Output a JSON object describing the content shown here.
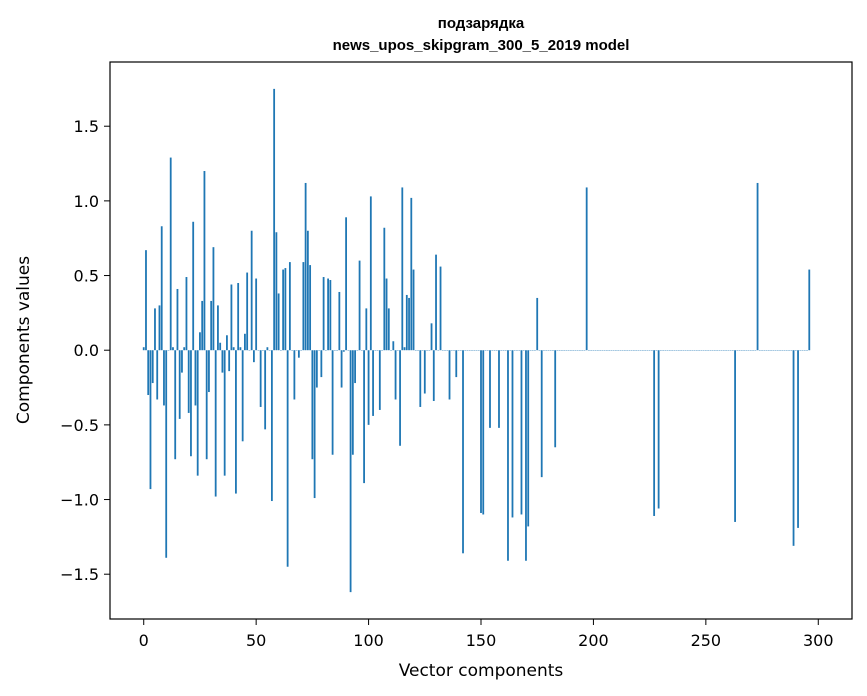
{
  "chart_data": {
    "type": "bar",
    "title": "подзарядка",
    "subtitle": "news_upos_skipgram_300_5_2019 model",
    "xlabel": "Vector components",
    "ylabel": "Components values",
    "xlim": [
      -15,
      315
    ],
    "ylim": [
      -1.8,
      1.93
    ],
    "xticks": [
      0,
      50,
      100,
      150,
      200,
      250,
      300
    ],
    "xtick_labels": [
      "0",
      "50",
      "100",
      "150",
      "200",
      "250",
      "300"
    ],
    "yticks": [
      -1.5,
      -1.0,
      -0.5,
      0.0,
      0.5,
      1.0,
      1.5
    ],
    "ytick_labels": [
      "−1.5",
      "−1.0",
      "−0.5",
      "0.0",
      "0.5",
      "1.0",
      "1.5"
    ],
    "grid": false,
    "bar_color": "#1f77b4",
    "values": [
      0.02,
      0.67,
      -0.3,
      -0.93,
      -0.22,
      0.28,
      -0.33,
      0.3,
      0.83,
      -0.37,
      -1.39,
      0.0,
      1.29,
      0.02,
      -0.73,
      0.41,
      -0.46,
      -0.15,
      0.02,
      0.49,
      -0.42,
      -0.71,
      0.86,
      -0.37,
      -0.84,
      0.12,
      0.33,
      1.2,
      -0.73,
      -0.28,
      0.33,
      0.69,
      -0.98,
      0.3,
      0.05,
      -0.15,
      -0.84,
      0.1,
      -0.14,
      0.44,
      0.02,
      -0.96,
      0.45,
      0.02,
      -0.61,
      0.11,
      0.52,
      0.0,
      0.8,
      -0.08,
      0.48,
      0.0,
      -0.38,
      0.0,
      -0.53,
      0.02,
      -0.0,
      -1.01,
      1.75,
      0.79,
      0.38,
      -0.0,
      0.54,
      0.55,
      -1.45,
      0.59,
      0.0,
      -0.33,
      0.0,
      -0.05,
      0.0,
      0.59,
      1.12,
      0.8,
      0.57,
      -0.73,
      -0.99,
      -0.25,
      0.0,
      -0.18,
      0.49,
      0.0,
      0.48,
      0.47,
      -0.7,
      0.0,
      0.0,
      0.39,
      -0.25,
      -0.01,
      0.89,
      0.0,
      -1.62,
      -0.7,
      -0.22,
      0.0,
      0.6,
      0.0,
      -0.89,
      0.28,
      -0.5,
      1.03,
      -0.44,
      0.0,
      0.0,
      -0.4,
      0.0,
      0.82,
      0.48,
      0.28,
      0.0,
      0.06,
      -0.33,
      0.0,
      -0.64,
      1.09,
      0.02,
      0.37,
      0.35,
      1.02,
      0.54,
      0.0,
      0.0,
      -0.38,
      0.0,
      -0.29,
      0.0,
      0.0,
      0.18,
      -0.34,
      0.64,
      0.0,
      0.56,
      0.0,
      0.0,
      0.0,
      -0.33,
      0.0,
      0.0,
      -0.18,
      0.0,
      0.0,
      -1.36,
      0.0,
      0.0,
      0.0,
      0.0,
      0.0,
      0.0,
      0.0,
      -1.09,
      -1.1,
      0.0,
      0.0,
      -0.52,
      0.0,
      0.0,
      0.0,
      -0.52,
      0.0,
      0.0,
      0.0,
      -1.41,
      0.0,
      -1.12,
      0.0,
      0.0,
      0.0,
      -1.1,
      0.0,
      -1.41,
      -1.18,
      0.0,
      0.0,
      0.0,
      0.35,
      0.0,
      -0.85,
      0.0,
      0.0,
      0.0,
      0.0,
      0.0,
      -0.65,
      0.0,
      0.0,
      0.0,
      0.0,
      0.0,
      0.0,
      0.0,
      0.0,
      0.0,
      0.0,
      0.0,
      0.0,
      0.0,
      1.09,
      0.0,
      0.0,
      0.0,
      0.0,
      0.0,
      0.0,
      0.0,
      0.0,
      0.0,
      0.0,
      0.0,
      0.0,
      0.0,
      0.0,
      0.0,
      0.0,
      0.0,
      0.0,
      0.0,
      0.0,
      0.0,
      0.0,
      0.0,
      0.0,
      0.0,
      0.0,
      0.0,
      0.0,
      0.0,
      -1.11,
      0.0,
      -1.06,
      0.0,
      0.0,
      0.0,
      0.0,
      0.0,
      0.0,
      0.0,
      0.0,
      0.0,
      0.0,
      0.0,
      0.0,
      0.0,
      0.0,
      0.0,
      0.0,
      0.0,
      0.0,
      0.0,
      0.0,
      0.0,
      0.0,
      0.0,
      0.0,
      0.0,
      0.0,
      0.0,
      0.0,
      0.0,
      0.0,
      0.0,
      0.0,
      0.0,
      -1.15,
      0.0,
      0.0,
      0.0,
      0.0,
      0.0,
      0.0,
      0.0,
      0.0,
      0.0,
      1.12,
      0.0,
      0.0,
      0.0,
      0.0,
      0.0,
      0.0,
      0.0,
      0.0,
      0.0,
      0.0,
      0.0,
      0.0,
      0.0,
      0.0,
      0.0,
      -1.31,
      0.0,
      -1.19,
      0.0,
      0.0,
      0.0,
      0.0,
      0.54
    ]
  }
}
